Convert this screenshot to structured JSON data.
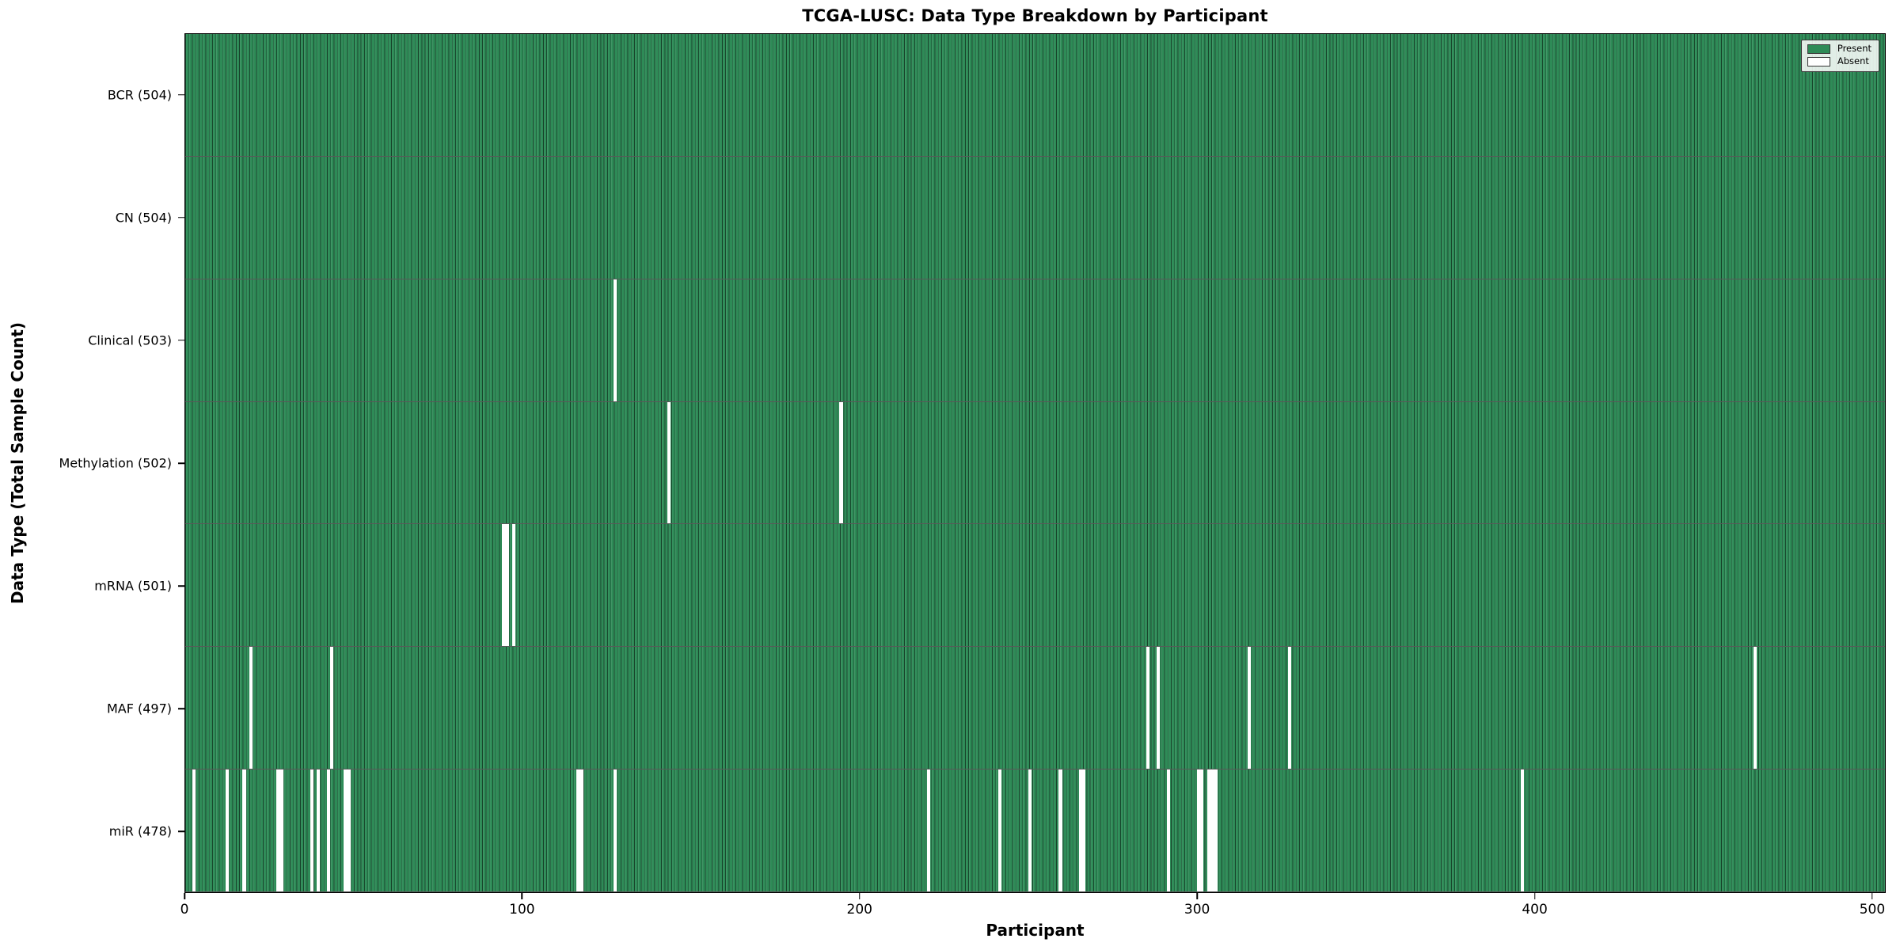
{
  "figure": {
    "title": "TCGA-LUSC: Data Type Breakdown by Participant",
    "xlabel": "Participant",
    "ylabel": "Data Type (Total Sample Count)"
  },
  "chart_data": {
    "type": "heatmap",
    "title": "TCGA-LUSC: Data Type Breakdown by Participant",
    "xlabel": "Participant",
    "ylabel": "Data Type (Total Sample Count)",
    "x_ticks": [
      0,
      100,
      200,
      300,
      400,
      500
    ],
    "xlim": [
      0,
      504
    ],
    "n_participants": 504,
    "grid": false,
    "legend_position": "upper right",
    "colors": {
      "present": "#2E8B57",
      "absent": "#FFFFFF",
      "bar_edge": "#18402A"
    },
    "legend": [
      {
        "label": "Present",
        "key": "present"
      },
      {
        "label": "Absent",
        "key": "absent"
      }
    ],
    "rows": [
      {
        "label": "BCR (504)",
        "data_type": "BCR",
        "total": 504,
        "absent_participants": []
      },
      {
        "label": "CN (504)",
        "data_type": "CN",
        "total": 504,
        "absent_participants": []
      },
      {
        "label": "Clinical (503)",
        "data_type": "Clinical",
        "total": 503,
        "absent_participants": [
          128
        ]
      },
      {
        "label": "Methylation (502)",
        "data_type": "Methylation",
        "total": 502,
        "absent_participants": [
          144,
          195
        ]
      },
      {
        "label": "mRNA (501)",
        "data_type": "mRNA",
        "total": 501,
        "absent_participants": [
          95,
          96,
          98
        ]
      },
      {
        "label": "MAF (497)",
        "data_type": "MAF",
        "total": 497,
        "absent_participants": [
          20,
          44,
          286,
          289,
          316,
          328,
          466
        ]
      },
      {
        "label": "miR (478)",
        "data_type": "miR",
        "total": 478,
        "absent_participants": [
          3,
          13,
          18,
          28,
          29,
          38,
          40,
          43,
          48,
          49,
          117,
          118,
          128,
          221,
          242,
          251,
          260,
          266,
          267,
          292,
          301,
          302,
          304,
          305,
          306,
          397
        ]
      }
    ]
  }
}
